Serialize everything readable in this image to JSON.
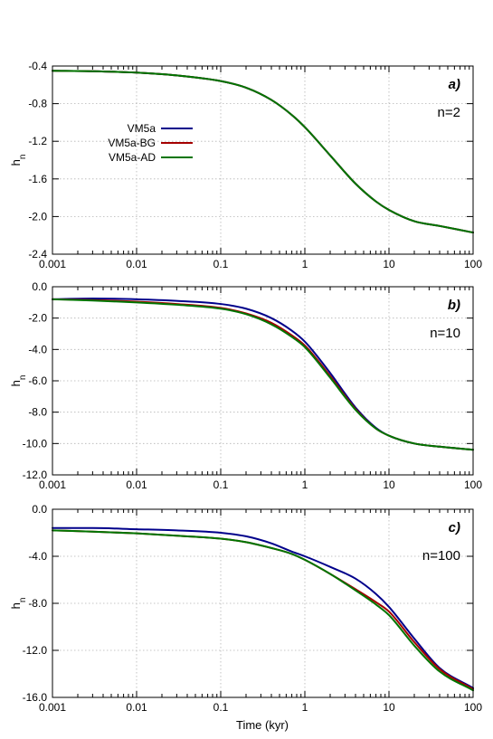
{
  "figure": {
    "xlabel": "Time (kyr)"
  },
  "chart_data": [
    {
      "type": "line",
      "panel_label": "a)",
      "annotation": "n=2",
      "xlabel": "",
      "ylabel": "h_n",
      "xscale": "log",
      "xlim": [
        0.001,
        100
      ],
      "ylim": [
        -2.4,
        -0.4
      ],
      "xticks": [
        "0.001",
        "0.01",
        "0.1",
        "1",
        "10",
        "100"
      ],
      "yticks": [
        "-0.4",
        "-0.8",
        "-1.2",
        "-1.6",
        "-2.0",
        "-2.4"
      ],
      "grid": true,
      "legend": {
        "placement": "upper-left"
      },
      "series": [
        {
          "name": "VM5a",
          "color": "#00008b",
          "x": [
            0.001,
            0.003,
            0.01,
            0.03,
            0.1,
            0.2,
            0.4,
            0.7,
            1,
            2,
            4,
            7,
            10,
            20,
            40,
            100
          ],
          "y": [
            -0.45,
            -0.455,
            -0.47,
            -0.5,
            -0.56,
            -0.63,
            -0.76,
            -0.92,
            -1.05,
            -1.35,
            -1.65,
            -1.84,
            -1.93,
            -2.05,
            -2.1,
            -2.17
          ]
        },
        {
          "name": "VM5a-BG",
          "color": "#a50000",
          "x": [
            0.001,
            0.003,
            0.01,
            0.03,
            0.1,
            0.2,
            0.4,
            0.7,
            1,
            2,
            4,
            7,
            10,
            20,
            40,
            100
          ],
          "y": [
            -0.45,
            -0.455,
            -0.47,
            -0.5,
            -0.56,
            -0.63,
            -0.76,
            -0.92,
            -1.05,
            -1.35,
            -1.65,
            -1.84,
            -1.93,
            -2.05,
            -2.1,
            -2.17
          ]
        },
        {
          "name": "VM5a-AD",
          "color": "#007500",
          "x": [
            0.001,
            0.003,
            0.01,
            0.03,
            0.1,
            0.2,
            0.4,
            0.7,
            1,
            2,
            4,
            7,
            10,
            20,
            40,
            100
          ],
          "y": [
            -0.45,
            -0.455,
            -0.47,
            -0.5,
            -0.56,
            -0.63,
            -0.76,
            -0.92,
            -1.05,
            -1.35,
            -1.65,
            -1.84,
            -1.93,
            -2.05,
            -2.1,
            -2.17
          ]
        }
      ]
    },
    {
      "type": "line",
      "panel_label": "b)",
      "annotation": "n=10",
      "xlabel": "",
      "ylabel": "h_n",
      "xscale": "log",
      "xlim": [
        0.001,
        100
      ],
      "ylim": [
        -12.0,
        0.0
      ],
      "xticks": [
        "0.001",
        "0.01",
        "0.1",
        "1",
        "10",
        "100"
      ],
      "yticks": [
        "0.0",
        "-2.0",
        "-4.0",
        "-6.0",
        "-8.0",
        "-10.0",
        "-12.0"
      ],
      "grid": true,
      "series": [
        {
          "name": "VM5a",
          "color": "#00008b",
          "x": [
            0.001,
            0.003,
            0.01,
            0.03,
            0.1,
            0.2,
            0.4,
            0.7,
            1,
            2,
            4,
            7,
            10,
            20,
            40,
            100
          ],
          "y": [
            -0.8,
            -0.75,
            -0.8,
            -0.9,
            -1.1,
            -1.4,
            -2.0,
            -2.8,
            -3.5,
            -5.5,
            -7.7,
            -9.0,
            -9.5,
            -10.0,
            -10.2,
            -10.4
          ]
        },
        {
          "name": "VM5a-BG",
          "color": "#a50000",
          "x": [
            0.001,
            0.003,
            0.01,
            0.03,
            0.1,
            0.2,
            0.4,
            0.7,
            1,
            2,
            4,
            7,
            10,
            20,
            40,
            100
          ],
          "y": [
            -0.8,
            -0.85,
            -0.95,
            -1.1,
            -1.35,
            -1.7,
            -2.3,
            -3.1,
            -3.75,
            -5.7,
            -7.8,
            -9.05,
            -9.5,
            -10.0,
            -10.2,
            -10.4
          ]
        },
        {
          "name": "VM5a-AD",
          "color": "#007500",
          "x": [
            0.001,
            0.003,
            0.01,
            0.03,
            0.1,
            0.2,
            0.4,
            0.7,
            1,
            2,
            4,
            7,
            10,
            20,
            40,
            100
          ],
          "y": [
            -0.8,
            -0.88,
            -1.0,
            -1.15,
            -1.4,
            -1.75,
            -2.4,
            -3.2,
            -3.85,
            -5.8,
            -7.85,
            -9.05,
            -9.5,
            -10.0,
            -10.2,
            -10.4
          ]
        }
      ]
    },
    {
      "type": "line",
      "panel_label": "c)",
      "annotation": "n=100",
      "xlabel": "Time (kyr)",
      "ylabel": "h_n",
      "xscale": "log",
      "xlim": [
        0.001,
        100
      ],
      "ylim": [
        -16.0,
        0.0
      ],
      "xticks": [
        "0.001",
        "0.01",
        "0.1",
        "1",
        "10",
        "100"
      ],
      "yticks": [
        "0.0",
        "-4.0",
        "-8.0",
        "-12.0",
        "-16.0"
      ],
      "grid": true,
      "series": [
        {
          "name": "VM5a",
          "color": "#00008b",
          "x": [
            0.001,
            0.003,
            0.01,
            0.03,
            0.1,
            0.2,
            0.4,
            0.7,
            1,
            2,
            4,
            7,
            10,
            20,
            40,
            100
          ],
          "y": [
            -1.6,
            -1.6,
            -1.7,
            -1.8,
            -2.0,
            -2.3,
            -2.9,
            -3.6,
            -4.0,
            -4.9,
            -5.9,
            -7.2,
            -8.3,
            -11.0,
            -13.5,
            -15.2
          ]
        },
        {
          "name": "VM5a-BG",
          "color": "#a50000",
          "x": [
            0.001,
            0.003,
            0.01,
            0.03,
            0.1,
            0.2,
            0.4,
            0.7,
            1,
            2,
            4,
            7,
            10,
            20,
            40,
            100
          ],
          "y": [
            -1.8,
            -1.9,
            -2.05,
            -2.25,
            -2.5,
            -2.8,
            -3.3,
            -3.8,
            -4.3,
            -5.5,
            -6.8,
            -7.9,
            -8.7,
            -11.3,
            -13.6,
            -15.3
          ]
        },
        {
          "name": "VM5a-AD",
          "color": "#007500",
          "x": [
            0.001,
            0.003,
            0.01,
            0.03,
            0.1,
            0.2,
            0.4,
            0.7,
            1,
            2,
            4,
            7,
            10,
            20,
            40,
            100
          ],
          "y": [
            -1.8,
            -1.9,
            -2.05,
            -2.25,
            -2.5,
            -2.8,
            -3.3,
            -3.8,
            -4.3,
            -5.5,
            -6.9,
            -8.1,
            -9.0,
            -11.6,
            -13.8,
            -15.4
          ]
        }
      ]
    }
  ]
}
